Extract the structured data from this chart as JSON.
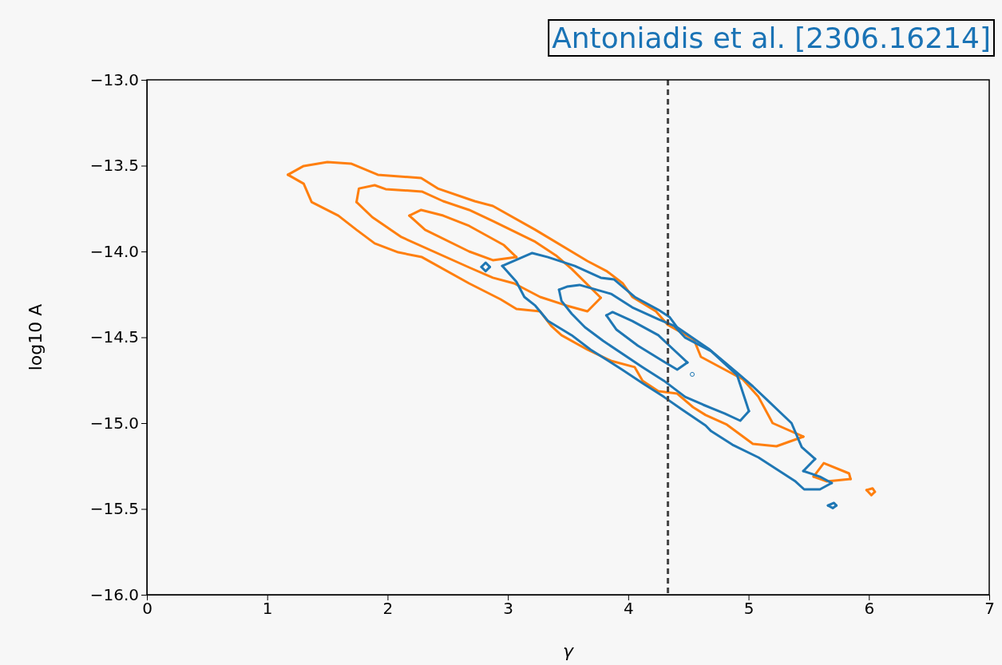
{
  "chart_data": {
    "type": "line",
    "xlabel": "γ",
    "ylabel": "log10 A",
    "annotations": [
      "Antoniadis et al. [2306.16214]"
    ],
    "xlim": [
      0,
      7
    ],
    "xticks": [
      0,
      1,
      2,
      3,
      4,
      5,
      6,
      7
    ],
    "ylim": [
      -16,
      -13
    ],
    "yticks": [
      {
        "value": -16,
        "label": "−16.0"
      },
      {
        "value": -15.5,
        "label": "−15.5"
      },
      {
        "value": -15,
        "label": "−15.0"
      },
      {
        "value": -14.5,
        "label": "−14.5"
      },
      {
        "value": -14,
        "label": "−14.0"
      },
      {
        "value": -13.5,
        "label": "−13.5"
      },
      {
        "value": -13,
        "label": "−13.0"
      }
    ],
    "grid": false,
    "ref_lines": [
      {
        "axis": "x",
        "value": 4.33,
        "color": "#444444",
        "line_style": "dashed"
      }
    ],
    "series": [
      {
        "color": "#ff7f0e",
        "x": [
          1.172,
          1.303,
          1.5,
          1.696,
          1.919,
          2.279,
          2.417,
          2.724,
          2.875,
          3.228,
          3.661,
          3.824,
          3.955,
          4.034,
          4.23,
          4.329,
          4.545,
          4.604,
          4.951,
          5.082,
          5.2,
          5.455
        ],
        "values": [
          -13.553,
          -13.502,
          -13.479,
          -13.488,
          -13.553,
          -13.572,
          -13.633,
          -13.707,
          -13.735,
          -13.874,
          -14.056,
          -14.116,
          -14.186,
          -14.265,
          -14.349,
          -14.428,
          -14.512,
          -14.614,
          -14.744,
          -14.847,
          -15.0,
          -15.079
        ]
      },
      {
        "color": "#ff7f0e",
        "x": [
          1.172,
          1.303,
          1.369,
          1.591,
          1.742,
          1.893,
          2.089,
          2.286,
          2.678,
          2.94,
          3.071,
          3.268,
          3.359,
          3.445,
          3.661,
          3.857,
          4.054,
          4.119,
          4.25,
          4.407,
          4.538,
          4.643,
          4.82,
          5.036,
          5.232,
          5.455
        ],
        "values": [
          -13.553,
          -13.605,
          -13.712,
          -13.791,
          -13.874,
          -13.953,
          -14.005,
          -14.033,
          -14.186,
          -14.279,
          -14.335,
          -14.349,
          -14.433,
          -14.488,
          -14.572,
          -14.637,
          -14.674,
          -14.753,
          -14.814,
          -14.828,
          -14.907,
          -14.953,
          -15.009,
          -15.121,
          -15.135,
          -15.079
        ]
      },
      {
        "color": "#ff7f0e",
        "x": [
          1.742,
          1.762,
          1.893,
          1.984,
          2.285,
          2.462,
          2.678,
          2.875,
          3.228,
          3.399,
          3.53,
          3.772
        ],
        "values": [
          -13.712,
          -13.633,
          -13.614,
          -13.637,
          -13.651,
          -13.707,
          -13.758,
          -13.823,
          -13.944,
          -14.023,
          -14.102,
          -14.27
        ]
      },
      {
        "color": "#ff7f0e",
        "x": [
          1.742,
          1.873,
          2.115,
          2.678,
          2.875,
          3.052,
          3.268,
          3.491,
          3.661,
          3.772
        ],
        "values": [
          -13.712,
          -13.8,
          -13.916,
          -14.093,
          -14.153,
          -14.186,
          -14.265,
          -14.316,
          -14.349,
          -14.27
        ]
      },
      {
        "color": "#ff7f0e",
        "x": [
          2.181,
          2.279,
          2.462,
          2.678,
          2.967,
          3.071
        ],
        "values": [
          -13.791,
          -13.758,
          -13.791,
          -13.851,
          -13.963,
          -14.033
        ]
      },
      {
        "color": "#ff7f0e",
        "x": [
          2.181,
          2.312,
          2.678,
          2.875,
          3.071
        ],
        "values": [
          -13.791,
          -13.874,
          -14.0,
          -14.051,
          -14.033
        ]
      },
      {
        "color": "#ff7f0e",
        "x": [
          5.54,
          5.625,
          5.835,
          5.848
        ],
        "values": [
          -15.312,
          -15.233,
          -15.293,
          -15.326
        ]
      },
      {
        "color": "#ff7f0e",
        "x": [
          5.54,
          5.652,
          5.848
        ],
        "values": [
          -15.312,
          -15.34,
          -15.326
        ]
      },
      {
        "color": "#ff7f0e",
        "x": [
          5.98,
          6.03,
          6.05
        ],
        "values": [
          -15.39,
          -15.38,
          -15.4
        ]
      },
      {
        "color": "#ff7f0e",
        "x": [
          5.98,
          6.02,
          6.05
        ],
        "values": [
          -15.39,
          -15.42,
          -15.4
        ]
      },
      {
        "color": "#1f77b4",
        "x": [
          2.953,
          3.202,
          3.333,
          3.556,
          3.772,
          3.883,
          4.054,
          4.25,
          4.342,
          4.407,
          4.669,
          4.905,
          5.036,
          5.147,
          5.357,
          5.442,
          5.553
        ],
        "values": [
          -14.084,
          -14.009,
          -14.033,
          -14.084,
          -14.153,
          -14.163,
          -14.265,
          -14.34,
          -14.381,
          -14.442,
          -14.567,
          -14.707,
          -14.786,
          -14.86,
          -15.0,
          -15.14,
          -15.209
        ]
      },
      {
        "color": "#1f77b4",
        "x": [
          5.455,
          5.553
        ],
        "values": [
          -15.279,
          -15.209
        ]
      },
      {
        "color": "#1f77b4",
        "x": [
          5.455,
          5.593,
          5.691
        ],
        "values": [
          -15.279,
          -15.312,
          -15.349
        ]
      },
      {
        "color": "#1f77b4",
        "x": [
          2.953,
          3.071,
          3.137,
          3.228,
          3.333,
          3.53,
          3.687,
          3.949,
          4.119,
          4.296,
          4.447,
          4.643,
          4.689,
          4.866,
          5.082,
          5.39,
          5.462,
          5.593,
          5.691
        ],
        "values": [
          -14.084,
          -14.177,
          -14.265,
          -14.316,
          -14.405,
          -14.488,
          -14.572,
          -14.688,
          -14.767,
          -14.847,
          -14.921,
          -15.014,
          -15.047,
          -15.126,
          -15.2,
          -15.34,
          -15.386,
          -15.386,
          -15.349
        ]
      },
      {
        "color": "#1f77b4",
        "x": [
          3.425,
          3.491,
          3.595,
          3.857,
          4.034,
          4.25,
          4.381,
          4.473,
          4.689,
          4.905,
          5.003
        ],
        "values": [
          -14.223,
          -14.205,
          -14.195,
          -14.247,
          -14.326,
          -14.395,
          -14.433,
          -14.502,
          -14.581,
          -14.721,
          -14.93
        ]
      },
      {
        "color": "#1f77b4",
        "x": [
          3.425,
          3.445,
          3.53,
          3.641,
          3.792,
          4.119,
          4.296,
          4.473,
          4.623,
          4.8,
          4.931,
          5.003
        ],
        "values": [
          -14.223,
          -14.288,
          -14.363,
          -14.442,
          -14.521,
          -14.674,
          -14.753,
          -14.847,
          -14.893,
          -14.944,
          -14.986,
          -14.93
        ]
      },
      {
        "color": "#1f77b4",
        "x": [
          3.818,
          3.87,
          4.034,
          4.25,
          4.342,
          4.492
        ],
        "values": [
          -14.372,
          -14.353,
          -14.405,
          -14.488,
          -14.549,
          -14.647
        ]
      },
      {
        "color": "#1f77b4",
        "x": [
          3.818,
          3.903,
          4.08,
          4.296,
          4.407,
          4.492
        ],
        "values": [
          -14.372,
          -14.456,
          -14.549,
          -14.642,
          -14.688,
          -14.647
        ]
      },
      {
        "color": "#1f77b4",
        "x": [
          2.78,
          2.815,
          2.85
        ],
        "values": [
          -14.09,
          -14.065,
          -14.09
        ]
      },
      {
        "color": "#1f77b4",
        "x": [
          2.78,
          2.815,
          2.85
        ],
        "values": [
          -14.09,
          -14.115,
          -14.09
        ]
      },
      {
        "color": "#1f77b4",
        "x": [
          5.66,
          5.71,
          5.73
        ],
        "values": [
          -15.48,
          -15.465,
          -15.48
        ]
      },
      {
        "color": "#1f77b4",
        "x": [
          5.66,
          5.7,
          5.73
        ],
        "values": [
          -15.48,
          -15.495,
          -15.48
        ]
      },
      {
        "type": "scatter",
        "marker": "circle",
        "color": "#1f77b4",
        "x": [
          4.532
        ],
        "values": [
          -14.716
        ]
      }
    ]
  }
}
